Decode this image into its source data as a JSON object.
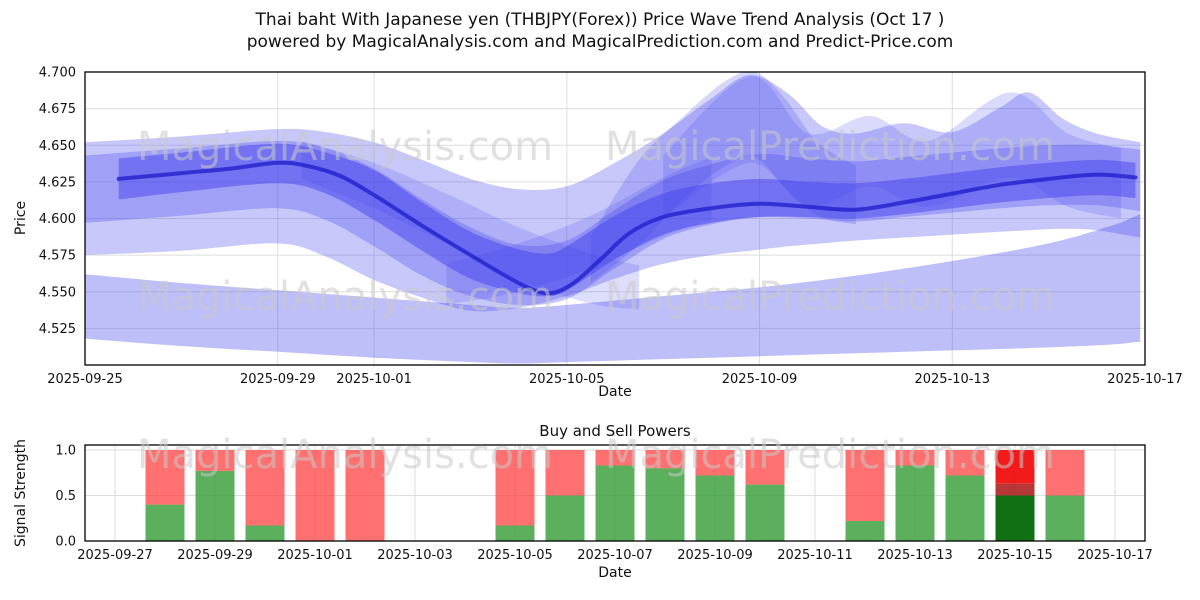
{
  "figure": {
    "title_line1": "Thai baht With Japanese yen (THBJPY(Forex)) Price Wave Trend Analysis (Oct 17 )",
    "title_line2": "powered by MagicalAnalysis.com and MagicalPrediction.com and Predict-Price.com"
  },
  "watermarks": {
    "analysis": "MagicalAnalysis.com",
    "prediction": "MagicalPrediction.com"
  },
  "colors": {
    "band": "#4444ee",
    "line": "#2626cf",
    "grid": "#dedede",
    "spine": "#000000",
    "text": "#111111",
    "watermark": "#c9c9c9",
    "bar_green": "rgba(56,158,56,0.82)",
    "bar_red": "rgba(255,58,58,0.72)",
    "bar_dark_green": "rgba(17,112,17,1)",
    "bar_dark_red": "rgba(178,44,44,0.95)",
    "bar_bright_red": "rgba(240,15,15,0.95)"
  },
  "chart_data": [
    {
      "type": "area",
      "name": "price-wave-trend",
      "xlabel": "Date",
      "ylabel": "Price",
      "x_start_date": "2025-09-25",
      "xlim_days": [
        0,
        22
      ],
      "ylim": [
        4.5,
        4.7
      ],
      "y_ticks": [
        "4.525",
        "4.550",
        "4.575",
        "4.600",
        "4.625",
        "4.650",
        "4.675",
        "4.700"
      ],
      "x_ticks": [
        {
          "day": 0,
          "label": "2025-09-25"
        },
        {
          "day": 4,
          "label": "2025-09-29"
        },
        {
          "day": 6,
          "label": "2025-10-01"
        },
        {
          "day": 10,
          "label": "2025-10-05"
        },
        {
          "day": 14,
          "label": "2025-10-09"
        },
        {
          "day": 18,
          "label": "2025-10-13"
        },
        {
          "day": 22,
          "label": "2025-10-17"
        }
      ],
      "bands": [
        {
          "alpha": 0.3,
          "points": [
            [
              0,
              4.575,
              4.652
            ],
            [
              2,
              4.578,
              4.656
            ],
            [
              4,
              4.583,
              4.661
            ],
            [
              5,
              4.574,
              4.659
            ],
            [
              6,
              4.558,
              4.652
            ],
            [
              7,
              4.546,
              4.64
            ],
            [
              8,
              4.537,
              4.627
            ],
            [
              9,
              4.539,
              4.62
            ],
            [
              10,
              4.547,
              4.622
            ],
            [
              11,
              4.559,
              4.638
            ],
            [
              12,
              4.569,
              4.658
            ],
            [
              13,
              4.575,
              4.682
            ],
            [
              13.8,
              4.578,
              4.698
            ],
            [
              14.6,
              4.581,
              4.685
            ],
            [
              15.3,
              4.583,
              4.663
            ],
            [
              16,
              4.585,
              4.658
            ],
            [
              17,
              4.587,
              4.665
            ],
            [
              18,
              4.589,
              4.659
            ],
            [
              19,
              4.591,
              4.676
            ],
            [
              19.6,
              4.592,
              4.686
            ],
            [
              20.3,
              4.593,
              4.668
            ],
            [
              21,
              4.592,
              4.658
            ],
            [
              21.9,
              4.587,
              4.652
            ]
          ]
        },
        {
          "alpha": 0.35,
          "points": [
            [
              0,
              4.518,
              4.562
            ],
            [
              2,
              4.513,
              4.556
            ],
            [
              4,
              4.509,
              4.551
            ],
            [
              6,
              4.505,
              4.546
            ],
            [
              8,
              4.502,
              4.541
            ],
            [
              9,
              4.501,
              4.539
            ],
            [
              10,
              4.502,
              4.541
            ],
            [
              12,
              4.504,
              4.547
            ],
            [
              14,
              4.506,
              4.553
            ],
            [
              16,
              4.508,
              4.561
            ],
            [
              18,
              4.51,
              4.571
            ],
            [
              20,
              4.512,
              4.583
            ],
            [
              21.3,
              4.514,
              4.595
            ],
            [
              21.9,
              4.516,
              4.603
            ]
          ]
        },
        {
          "alpha": 0.3,
          "points": [
            [
              0,
              4.597,
              4.643
            ],
            [
              2,
              4.602,
              4.648
            ],
            [
              4,
              4.607,
              4.653
            ],
            [
              5,
              4.599,
              4.648
            ],
            [
              6,
              4.581,
              4.634
            ],
            [
              7,
              4.561,
              4.613
            ],
            [
              8,
              4.547,
              4.594
            ],
            [
              9,
              4.541,
              4.582
            ],
            [
              10,
              4.545,
              4.585
            ],
            [
              11,
              4.566,
              4.606
            ],
            [
              12,
              4.586,
              4.626
            ],
            [
              13,
              4.596,
              4.637
            ],
            [
              14,
              4.601,
              4.644
            ],
            [
              15,
              4.6,
              4.641
            ],
            [
              16,
              4.598,
              4.639
            ],
            [
              17,
              4.601,
              4.642
            ],
            [
              18,
              4.604,
              4.645
            ],
            [
              19,
              4.607,
              4.648
            ],
            [
              20,
              4.609,
              4.65
            ],
            [
              21,
              4.609,
              4.65
            ],
            [
              21.9,
              4.605,
              4.647
            ]
          ]
        },
        {
          "alpha": 0.18,
          "points": [
            [
              4.5,
              4.627,
              4.653
            ],
            [
              6,
              4.607,
              4.638
            ],
            [
              7.5,
              4.583,
              4.617
            ],
            [
              9,
              4.558,
              4.594
            ],
            [
              10.5,
              4.542,
              4.576
            ],
            [
              11.5,
              4.538,
              4.568
            ]
          ]
        },
        {
          "alpha": 0.18,
          "points": [
            [
              7.5,
              4.541,
              4.569
            ],
            [
              9,
              4.55,
              4.583
            ],
            [
              10.5,
              4.566,
              4.602
            ],
            [
              12,
              4.588,
              4.628
            ],
            [
              13,
              4.599,
              4.642
            ]
          ]
        },
        {
          "alpha": 0.22,
          "points": [
            [
              10.5,
              4.556,
              4.588
            ],
            [
              11.5,
              4.582,
              4.64
            ],
            [
              12.5,
              4.616,
              4.672
            ],
            [
              13.3,
              4.636,
              4.694
            ],
            [
              13.9,
              4.642,
              4.7
            ],
            [
              14.5,
              4.622,
              4.683
            ],
            [
              15.2,
              4.602,
              4.652
            ],
            [
              16,
              4.596,
              4.636
            ]
          ]
        },
        {
          "alpha": 0.2,
          "points": [
            [
              12,
              4.6,
              4.643
            ],
            [
              13.8,
              4.638,
              4.697
            ],
            [
              15,
              4.608,
              4.658
            ],
            [
              16.3,
              4.622,
              4.67
            ],
            [
              17.5,
              4.608,
              4.653
            ],
            [
              19.2,
              4.628,
              4.686
            ],
            [
              20.4,
              4.608,
              4.658
            ],
            [
              21.5,
              4.6,
              4.648
            ]
          ]
        },
        {
          "alpha": 0.5,
          "points": [
            [
              0.7,
              4.613,
              4.641
            ],
            [
              2,
              4.618,
              4.645
            ],
            [
              4,
              4.624,
              4.651
            ],
            [
              5,
              4.617,
              4.645
            ],
            [
              6,
              4.599,
              4.633
            ],
            [
              7,
              4.578,
              4.611
            ],
            [
              8,
              4.559,
              4.591
            ],
            [
              9,
              4.549,
              4.579
            ],
            [
              9.6,
              4.547,
              4.576
            ],
            [
              10,
              4.551,
              4.581
            ],
            [
              11,
              4.572,
              4.602
            ],
            [
              12,
              4.589,
              4.617
            ],
            [
              13,
              4.597,
              4.624
            ],
            [
              14,
              4.601,
              4.627
            ],
            [
              15,
              4.601,
              4.625
            ],
            [
              16,
              4.6,
              4.624
            ],
            [
              17,
              4.603,
              4.627
            ],
            [
              18,
              4.607,
              4.631
            ],
            [
              19,
              4.611,
              4.635
            ],
            [
              20,
              4.614,
              4.638
            ],
            [
              21,
              4.616,
              4.64
            ],
            [
              21.8,
              4.614,
              4.638
            ]
          ]
        }
      ],
      "line": {
        "width": 4,
        "opacity": 0.85,
        "points": [
          [
            0.7,
            4.627
          ],
          [
            2,
            4.631
          ],
          [
            3,
            4.634
          ],
          [
            4,
            4.638
          ],
          [
            4.6,
            4.636
          ],
          [
            5.3,
            4.629
          ],
          [
            6,
            4.616
          ],
          [
            7,
            4.595
          ],
          [
            8,
            4.575
          ],
          [
            9,
            4.556
          ],
          [
            9.6,
            4.549
          ],
          [
            10.1,
            4.555
          ],
          [
            10.7,
            4.572
          ],
          [
            11.3,
            4.59
          ],
          [
            12,
            4.601
          ],
          [
            13,
            4.607
          ],
          [
            14,
            4.61
          ],
          [
            15,
            4.608
          ],
          [
            16,
            4.606
          ],
          [
            17,
            4.611
          ],
          [
            18,
            4.617
          ],
          [
            19,
            4.623
          ],
          [
            20,
            4.627
          ],
          [
            21,
            4.63
          ],
          [
            21.8,
            4.628
          ]
        ]
      }
    },
    {
      "type": "bar",
      "name": "buy-sell-powers",
      "title": "Buy and Sell Powers",
      "xlabel": "Date",
      "ylabel": "Signal Strength",
      "x_start_date": "2025-09-27",
      "xlim_days": [
        -0.6,
        20.6
      ],
      "ylim": [
        0,
        1.055
      ],
      "y_ticks": [
        "0.0",
        "0.5",
        "1.0"
      ],
      "x_ticks": [
        {
          "day": 0,
          "label": "2025-09-27"
        },
        {
          "day": 2,
          "label": "2025-09-29"
        },
        {
          "day": 4,
          "label": "2025-10-01"
        },
        {
          "day": 6,
          "label": "2025-10-03"
        },
        {
          "day": 8,
          "label": "2025-10-05"
        },
        {
          "day": 10,
          "label": "2025-10-07"
        },
        {
          "day": 12,
          "label": "2025-10-09"
        },
        {
          "day": 14,
          "label": "2025-10-11"
        },
        {
          "day": 16,
          "label": "2025-10-13"
        },
        {
          "day": 18,
          "label": "2025-10-15"
        },
        {
          "day": 20,
          "label": "2025-10-17"
        }
      ],
      "bar_width_days": 0.78,
      "bars": [
        {
          "day": 1,
          "date": "2025-09-28",
          "segments": [
            [
              "bar_green",
              0.4
            ],
            [
              "bar_red",
              0.6
            ]
          ]
        },
        {
          "day": 2,
          "date": "2025-09-29",
          "segments": [
            [
              "bar_green",
              0.77
            ],
            [
              "bar_red",
              0.23
            ]
          ]
        },
        {
          "day": 3,
          "date": "2025-09-30",
          "segments": [
            [
              "bar_green",
              0.17
            ],
            [
              "bar_red",
              0.83
            ]
          ]
        },
        {
          "day": 4,
          "date": "2025-10-01",
          "segments": [
            [
              "bar_red",
              1.0
            ]
          ]
        },
        {
          "day": 5,
          "date": "2025-10-02",
          "segments": [
            [
              "bar_red",
              1.0
            ]
          ]
        },
        {
          "day": 8,
          "date": "2025-10-05",
          "segments": [
            [
              "bar_green",
              0.17
            ],
            [
              "bar_red",
              0.83
            ]
          ]
        },
        {
          "day": 9,
          "date": "2025-10-06",
          "segments": [
            [
              "bar_green",
              0.5
            ],
            [
              "bar_red",
              0.5
            ]
          ]
        },
        {
          "day": 10,
          "date": "2025-10-07",
          "segments": [
            [
              "bar_green",
              0.83
            ],
            [
              "bar_red",
              0.17
            ]
          ]
        },
        {
          "day": 11,
          "date": "2025-10-08",
          "segments": [
            [
              "bar_green",
              0.8
            ],
            [
              "bar_red",
              0.2
            ]
          ]
        },
        {
          "day": 12,
          "date": "2025-10-09",
          "segments": [
            [
              "bar_green",
              0.72
            ],
            [
              "bar_red",
              0.28
            ]
          ]
        },
        {
          "day": 13,
          "date": "2025-10-10",
          "segments": [
            [
              "bar_green",
              0.62
            ],
            [
              "bar_red",
              0.38
            ]
          ]
        },
        {
          "day": 15,
          "date": "2025-10-12",
          "segments": [
            [
              "bar_green",
              0.22
            ],
            [
              "bar_red",
              0.78
            ]
          ]
        },
        {
          "day": 16,
          "date": "2025-10-13",
          "segments": [
            [
              "bar_green",
              0.83
            ],
            [
              "bar_red",
              0.17
            ]
          ]
        },
        {
          "day": 17,
          "date": "2025-10-14",
          "segments": [
            [
              "bar_green",
              0.72
            ],
            [
              "bar_red",
              0.28
            ]
          ]
        },
        {
          "day": 18,
          "date": "2025-10-15",
          "segments": [
            [
              "bar_dark_green",
              0.5
            ],
            [
              "bar_dark_red",
              0.13
            ],
            [
              "bar_bright_red",
              0.37
            ]
          ]
        },
        {
          "day": 19,
          "date": "2025-10-16",
          "segments": [
            [
              "bar_green",
              0.5
            ],
            [
              "bar_red",
              0.5
            ]
          ]
        }
      ]
    }
  ]
}
